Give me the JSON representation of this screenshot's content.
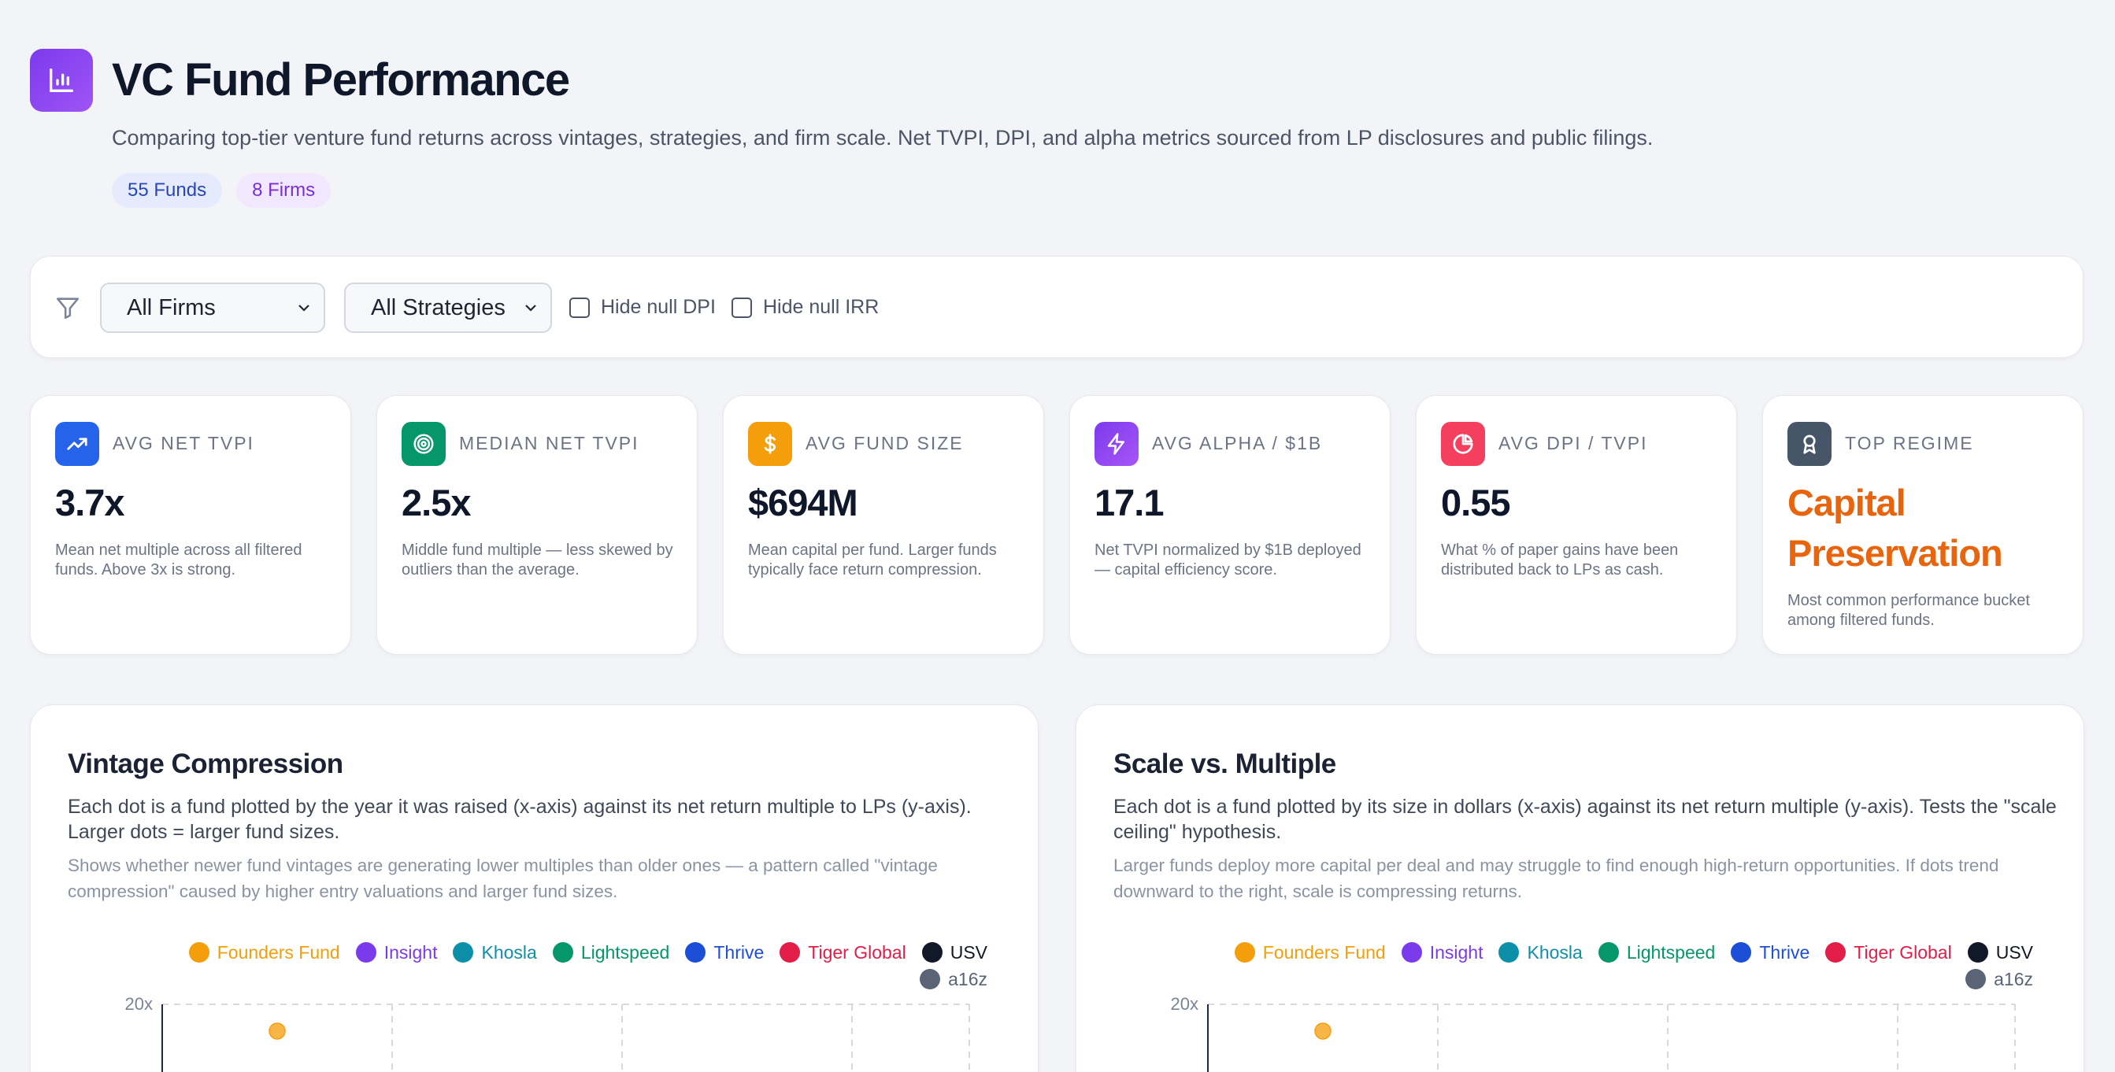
{
  "header": {
    "title": "VC Fund Performance",
    "subtitle": "Comparing top-tier venture fund returns across vintages, strategies, and firm scale. Net TVPI, DPI, and alpha metrics sourced from LP disclosures and public filings.",
    "pill_funds": "55 Funds",
    "pill_firms": "8 Firms",
    "logo_icon": "bar-chart-icon"
  },
  "filters": {
    "firm_select": "All Firms",
    "strategy_select": "All Strategies",
    "hide_null_dpi": "Hide null DPI",
    "hide_null_irr": "Hide null IRR",
    "hide_null_dpi_checked": false,
    "hide_null_irr_checked": false
  },
  "kpis": [
    {
      "label": "AVG NET TVPI",
      "value": "3.7x",
      "desc": "Mean net multiple across all filtered funds. Above 3x is strong.",
      "icon": "trending-up-icon",
      "color": "#2563eb"
    },
    {
      "label": "MEDIAN NET TVPI",
      "value": "2.5x",
      "desc": "Middle fund multiple — less skewed by outliers than the average.",
      "icon": "target-icon",
      "color": "#059669"
    },
    {
      "label": "AVG FUND SIZE",
      "value": "$694M",
      "desc": "Mean capital per fund. Larger funds typically face return compression.",
      "icon": "dollar-icon",
      "color": "#f59e0b"
    },
    {
      "label": "AVG ALPHA / $1B",
      "value": "17.1",
      "desc": "Net TVPI normalized by $1B deployed — capital efficiency score.",
      "icon": "lightning-icon",
      "color": "#8b5cf6"
    },
    {
      "label": "AVG DPI / TVPI",
      "value": "0.55",
      "desc": "What % of paper gains have been distributed back to LPs as cash.",
      "icon": "pie-chart-icon",
      "color": "#f43f5e"
    },
    {
      "label": "TOP REGIME",
      "value": "Capital Preservation",
      "desc": "Most common performance bucket among filtered funds.",
      "icon": "award-icon",
      "color": "#475569"
    }
  ],
  "charts": {
    "vintage": {
      "title": "Vintage Compression",
      "desc": "Each dot is a fund plotted by the year it was raised (x-axis) against its net return multiple to LPs (y-axis). Larger dots = larger fund sizes.",
      "note": "Shows whether newer fund vintages are generating lower multiples than older ones — a pattern called \"vintage compression\" caused by higher entry valuations and larger fund sizes."
    },
    "scale": {
      "title": "Scale vs. Multiple",
      "desc": "Each dot is a fund plotted by its size in dollars (x-axis) against its net return multiple (y-axis). Tests the \"scale ceiling\" hypothesis.",
      "note": "Larger funds deploy more capital per deal and may struggle to find enough high-return opportunities. If dots trend downward to the right, scale is compressing returns."
    }
  },
  "legend": [
    {
      "name": "Founders Fund",
      "color": "#f59e0b"
    },
    {
      "name": "Insight",
      "color": "#7c3aed"
    },
    {
      "name": "Khosla",
      "color": "#0e8fa8"
    },
    {
      "name": "Lightspeed",
      "color": "#059669"
    },
    {
      "name": "Thrive",
      "color": "#1d4ed8"
    },
    {
      "name": "Tiger Global",
      "color": "#e11d48"
    },
    {
      "name": "USV",
      "color": "#111827"
    },
    {
      "name": "a16z",
      "color": "#5b6475"
    }
  ],
  "chart_data": [
    {
      "type": "scatter",
      "title": "Vintage Compression",
      "ylabel": "",
      "y_ticks": [
        "20x"
      ],
      "ylim_top": 20,
      "series": [
        {
          "name": "Founders Fund",
          "values": [
            {
              "y": 19
            }
          ]
        }
      ]
    },
    {
      "type": "scatter",
      "title": "Scale vs. Multiple",
      "ylabel": "",
      "y_ticks": [
        "20x"
      ],
      "ylim_top": 20,
      "series": [
        {
          "name": "Founders Fund",
          "values": [
            {
              "y": 19
            }
          ]
        }
      ]
    }
  ]
}
